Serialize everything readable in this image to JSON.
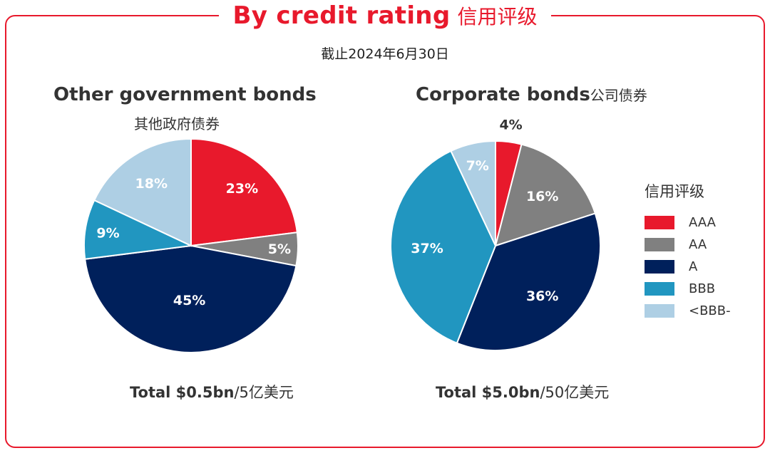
{
  "header": {
    "title_en": "By credit rating",
    "title_zh": "信用评级",
    "date": "截止2024年6月30日"
  },
  "chart_data": [
    {
      "type": "pie",
      "title": "Other government bonds",
      "subtitle": "其他政府债券",
      "categories": [
        "AAA",
        "AA",
        "A",
        "BBB",
        "<BBB-"
      ],
      "values": [
        23,
        5,
        45,
        9,
        18
      ],
      "labels": [
        "23%",
        "5%",
        "45%",
        "9%",
        "18%"
      ],
      "total_bold": "Total $0.5bn",
      "total_rest": "/5亿美元"
    },
    {
      "type": "pie",
      "title": "Corporate bonds",
      "subtitle": "公司债券",
      "categories": [
        "AAA",
        "AA",
        "A",
        "BBB",
        "<BBB-"
      ],
      "values": [
        4,
        16,
        36,
        37,
        7
      ],
      "labels": [
        "4%",
        "16%",
        "36%",
        "37%",
        "7%"
      ],
      "total_bold": "Total $5.0bn",
      "total_rest": "/50亿美元"
    }
  ],
  "legend": {
    "title": "信用评级",
    "items": [
      {
        "label": "AAA",
        "color": "#e8192c"
      },
      {
        "label": "AA",
        "color": "#808080"
      },
      {
        "label": "A",
        "color": "#00205b"
      },
      {
        "label": "BBB",
        "color": "#2196c0"
      },
      {
        "label": "<BBB-",
        "color": "#aecfe4"
      }
    ]
  },
  "label_colors": [
    "#ffffff",
    "#ffffff",
    "#ffffff",
    "#ffffff",
    "#ffffff"
  ],
  "outside_label_color": "#333333"
}
